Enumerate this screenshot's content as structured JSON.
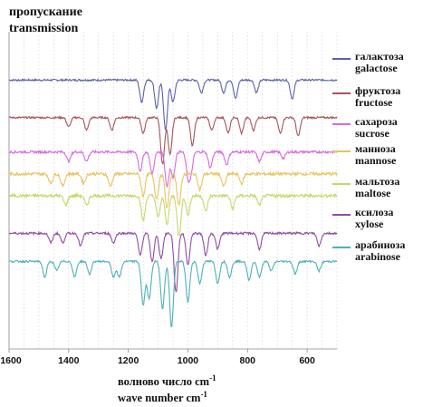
{
  "colors": {
    "galactose": "#5b62a8",
    "fructose": "#a5545a",
    "sucrose": "#d46be0",
    "mannose": "#e6c45e",
    "maltose": "#c9d66a",
    "xylose": "#8e4ea2",
    "arabinose": "#4fb0b8",
    "axis": "#888888"
  },
  "chart_data": {
    "type": "line",
    "title": "",
    "ylabel_ru": "пропускание",
    "ylabel_en": "transmission",
    "xlabel_ru": "волново число cm",
    "xlabel_en": "wave number cm",
    "xlabel_exp": "-1",
    "xlim": [
      1600,
      500
    ],
    "x_ticks": [
      "1600",
      "1400",
      "1200",
      "1000",
      "800",
      "600"
    ],
    "x_tick_values": [
      1600,
      1400,
      1200,
      1000,
      800,
      600
    ],
    "grid": true,
    "legend_position": "right",
    "series": [
      {
        "name_ru": "галактоза",
        "name_en": "galactose",
        "color_key": "galactose",
        "baseline": 0.86,
        "noise": 0.006,
        "bands": [
          [
            1155,
            0.07
          ],
          [
            1105,
            0.09
          ],
          [
            1075,
            0.16
          ],
          [
            1050,
            0.07
          ],
          [
            955,
            0.04
          ],
          [
            880,
            0.04
          ],
          [
            840,
            0.06
          ],
          [
            770,
            0.04
          ],
          [
            650,
            0.06
          ]
        ]
      },
      {
        "name_ru": "фруктоза",
        "name_en": "fructose",
        "color_key": "fructose",
        "baseline": 0.74,
        "noise": 0.006,
        "bands": [
          [
            1400,
            0.03
          ],
          [
            1340,
            0.04
          ],
          [
            1255,
            0.04
          ],
          [
            1150,
            0.05
          ],
          [
            1085,
            0.15
          ],
          [
            1060,
            0.12
          ],
          [
            985,
            0.09
          ],
          [
            920,
            0.04
          ],
          [
            865,
            0.05
          ],
          [
            820,
            0.05
          ],
          [
            780,
            0.04
          ],
          [
            690,
            0.05
          ],
          [
            630,
            0.06
          ]
        ]
      },
      {
        "name_ru": "сахароза",
        "name_en": "sucrose",
        "color_key": "sucrose",
        "baseline": 0.63,
        "noise": 0.008,
        "bands": [
          [
            1400,
            0.03
          ],
          [
            1340,
            0.03
          ],
          [
            1160,
            0.06
          ],
          [
            1120,
            0.07
          ],
          [
            1070,
            0.11
          ],
          [
            1050,
            0.08
          ],
          [
            1000,
            0.07
          ],
          [
            990,
            0.06
          ],
          [
            925,
            0.05
          ],
          [
            870,
            0.04
          ],
          [
            760,
            0.03
          ],
          [
            680,
            0.02
          ]
        ]
      },
      {
        "name_ru": "манноза",
        "name_en": "mannose",
        "color_key": "mannose",
        "baseline": 0.56,
        "noise": 0.01,
        "bands": [
          [
            1460,
            0.03
          ],
          [
            1420,
            0.04
          ],
          [
            1350,
            0.03
          ],
          [
            1260,
            0.04
          ],
          [
            1150,
            0.07
          ],
          [
            1105,
            0.08
          ],
          [
            1070,
            0.11
          ],
          [
            1030,
            0.1
          ],
          [
            960,
            0.05
          ],
          [
            880,
            0.04
          ],
          [
            820,
            0.03
          ]
        ]
      },
      {
        "name_ru": "мальтоза",
        "name_en": "maltose",
        "color_key": "maltose",
        "baseline": 0.49,
        "noise": 0.01,
        "bands": [
          [
            1410,
            0.03
          ],
          [
            1340,
            0.03
          ],
          [
            1150,
            0.08
          ],
          [
            1100,
            0.07
          ],
          [
            1070,
            0.09
          ],
          [
            1030,
            0.13
          ],
          [
            1000,
            0.06
          ],
          [
            940,
            0.05
          ],
          [
            850,
            0.04
          ],
          [
            760,
            0.03
          ]
        ]
      },
      {
        "name_ru": "ксилоза",
        "name_en": "xylose",
        "color_key": "xylose",
        "baseline": 0.37,
        "noise": 0.007,
        "bands": [
          [
            1460,
            0.03
          ],
          [
            1420,
            0.03
          ],
          [
            1360,
            0.04
          ],
          [
            1250,
            0.03
          ],
          [
            1160,
            0.07
          ],
          [
            1120,
            0.09
          ],
          [
            1090,
            0.08
          ],
          [
            1040,
            0.19
          ],
          [
            1000,
            0.1
          ],
          [
            940,
            0.07
          ],
          [
            900,
            0.05
          ],
          [
            760,
            0.05
          ],
          [
            560,
            0.04
          ]
        ]
      },
      {
        "name_ru": "арабиноза",
        "name_en": "arabinose",
        "color_key": "arabinose",
        "baseline": 0.28,
        "noise": 0.006,
        "bands": [
          [
            1480,
            0.05
          ],
          [
            1440,
            0.03
          ],
          [
            1380,
            0.05
          ],
          [
            1330,
            0.04
          ],
          [
            1250,
            0.05
          ],
          [
            1230,
            0.05
          ],
          [
            1150,
            0.14
          ],
          [
            1130,
            0.12
          ],
          [
            1085,
            0.15
          ],
          [
            1055,
            0.21
          ],
          [
            1000,
            0.13
          ],
          [
            960,
            0.07
          ],
          [
            900,
            0.07
          ],
          [
            860,
            0.05
          ],
          [
            795,
            0.06
          ],
          [
            760,
            0.05
          ],
          [
            720,
            0.03
          ],
          [
            640,
            0.04
          ],
          [
            560,
            0.03
          ]
        ]
      }
    ]
  }
}
